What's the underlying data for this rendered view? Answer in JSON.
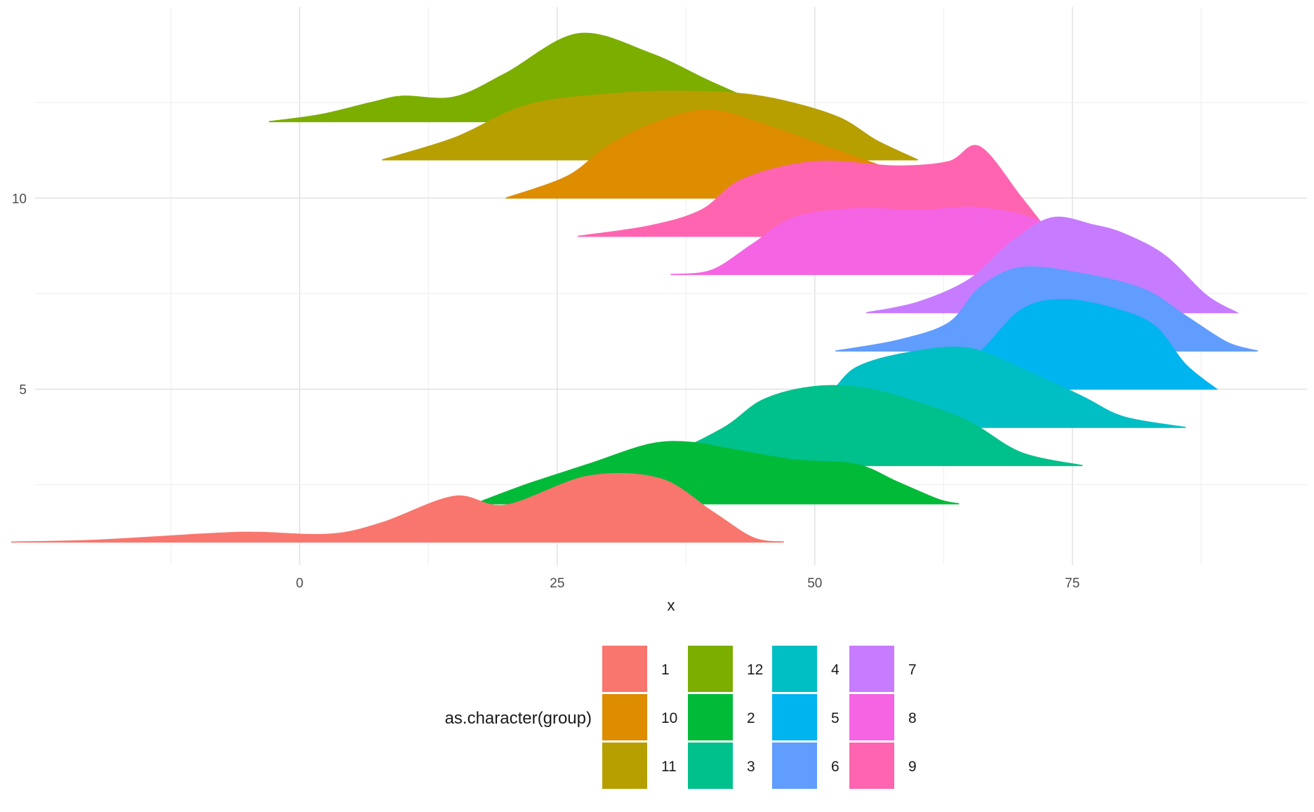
{
  "chart_data": {
    "type": "ridgeline",
    "title": "",
    "xlabel": "x",
    "ylabel": "",
    "xlim": [
      -25,
      99
    ],
    "ylim": [
      0.4,
      15
    ],
    "x_ticks": [
      0,
      25,
      50,
      75
    ],
    "x_tick_labels": [
      "0",
      "25",
      "50",
      "75"
    ],
    "y_ticks": [
      5,
      10
    ],
    "y_tick_labels": [
      "5",
      "10"
    ],
    "ridge_height": 2.3,
    "grid": true,
    "legend": {
      "title": "as.character(group)",
      "position": "bottom",
      "columns": [
        [
          {
            "label": "1",
            "color": "#F8766D"
          },
          {
            "label": "10",
            "color": "#DE8C00"
          },
          {
            "label": "11",
            "color": "#B79F00"
          }
        ],
        [
          {
            "label": "12",
            "color": "#7CAE00"
          },
          {
            "label": "2",
            "color": "#00BA38"
          },
          {
            "label": "3",
            "color": "#00C08B"
          }
        ],
        [
          {
            "label": "4",
            "color": "#00BFC4"
          },
          {
            "label": "5",
            "color": "#00B4F0"
          },
          {
            "label": "6",
            "color": "#619CFF"
          }
        ],
        [
          {
            "label": "7",
            "color": "#C77CFF"
          },
          {
            "label": "8",
            "color": "#F564E3"
          },
          {
            "label": "9",
            "color": "#FF64B0"
          }
        ]
      ]
    },
    "series": [
      {
        "name": "12",
        "baseline": 12,
        "color": "#7CAE00",
        "x": [
          -3,
          2,
          7,
          10,
          15,
          20,
          27,
          34,
          40,
          46,
          50
        ],
        "density": [
          0,
          0.08,
          0.22,
          0.29,
          0.28,
          0.55,
          1.0,
          0.78,
          0.45,
          0.15,
          0
        ]
      },
      {
        "name": "11",
        "baseline": 11,
        "color": "#B79F00",
        "x": [
          8,
          15,
          22,
          30,
          38,
          45,
          52,
          56,
          60
        ],
        "density": [
          0,
          0.25,
          0.62,
          0.75,
          0.78,
          0.72,
          0.5,
          0.22,
          0
        ]
      },
      {
        "name": "10",
        "baseline": 10,
        "color": "#DE8C00",
        "x": [
          20,
          26,
          30,
          35,
          40,
          46,
          52,
          58,
          62,
          66
        ],
        "density": [
          0,
          0.25,
          0.6,
          0.88,
          1.0,
          0.8,
          0.55,
          0.3,
          0.1,
          0
        ]
      },
      {
        "name": "9",
        "baseline": 9,
        "color": "#FF64B0",
        "x": [
          27,
          34,
          39,
          43,
          50,
          58,
          63,
          66,
          70,
          73
        ],
        "density": [
          0,
          0.12,
          0.3,
          0.65,
          0.85,
          0.8,
          0.85,
          1.02,
          0.45,
          0
        ]
      },
      {
        "name": "8",
        "baseline": 8,
        "color": "#F564E3",
        "x": [
          36,
          40,
          44,
          48,
          54,
          60,
          66,
          72,
          76,
          80
        ],
        "density": [
          0,
          0.05,
          0.35,
          0.65,
          0.75,
          0.73,
          0.76,
          0.6,
          0.2,
          0
        ]
      },
      {
        "name": "7",
        "baseline": 7,
        "color": "#C77CFF",
        "x": [
          55,
          60,
          65,
          69,
          73,
          77,
          80,
          84,
          88,
          91
        ],
        "density": [
          0,
          0.12,
          0.38,
          0.8,
          1.08,
          1.0,
          0.9,
          0.65,
          0.2,
          0
        ]
      },
      {
        "name": "6",
        "baseline": 6,
        "color": "#619CFF",
        "x": [
          52,
          58,
          63,
          66,
          70,
          76,
          82,
          86,
          90,
          93
        ],
        "density": [
          0,
          0.12,
          0.32,
          0.72,
          0.95,
          0.88,
          0.7,
          0.4,
          0.1,
          0
        ]
      },
      {
        "name": "5",
        "baseline": 5,
        "color": "#00B4F0",
        "x": [
          56,
          62,
          66,
          70,
          74,
          79,
          83,
          86,
          89
        ],
        "density": [
          0,
          0.1,
          0.42,
          0.9,
          1.02,
          0.92,
          0.72,
          0.28,
          0
        ]
      },
      {
        "name": "4",
        "baseline": 4,
        "color": "#00BFC4",
        "x": [
          42,
          47,
          51,
          54,
          59,
          65,
          71,
          76,
          80,
          86
        ],
        "density": [
          0,
          0.22,
          0.35,
          0.68,
          0.85,
          0.9,
          0.62,
          0.35,
          0.12,
          0
        ]
      },
      {
        "name": "3",
        "baseline": 3,
        "color": "#00C08B",
        "x": [
          29,
          35,
          41,
          45,
          50,
          55,
          60,
          65,
          70,
          76
        ],
        "density": [
          0,
          0.1,
          0.42,
          0.75,
          0.9,
          0.88,
          0.72,
          0.5,
          0.15,
          0
        ]
      },
      {
        "name": "2",
        "baseline": 2,
        "color": "#00BA38",
        "x": [
          17,
          22,
          28,
          34,
          38,
          42,
          48,
          54,
          58,
          62,
          64
        ],
        "density": [
          0,
          0.22,
          0.45,
          0.68,
          0.7,
          0.62,
          0.5,
          0.45,
          0.25,
          0.05,
          0
        ]
      },
      {
        "name": "1",
        "baseline": 1,
        "color": "#F8766D",
        "x": [
          -28,
          -20,
          -8,
          -4,
          3,
          8,
          15,
          20,
          28,
          35,
          40,
          44,
          47
        ],
        "density": [
          0,
          0.02,
          0.1,
          0.11,
          0.09,
          0.22,
          0.52,
          0.42,
          0.75,
          0.72,
          0.35,
          0.05,
          0
        ]
      }
    ]
  }
}
